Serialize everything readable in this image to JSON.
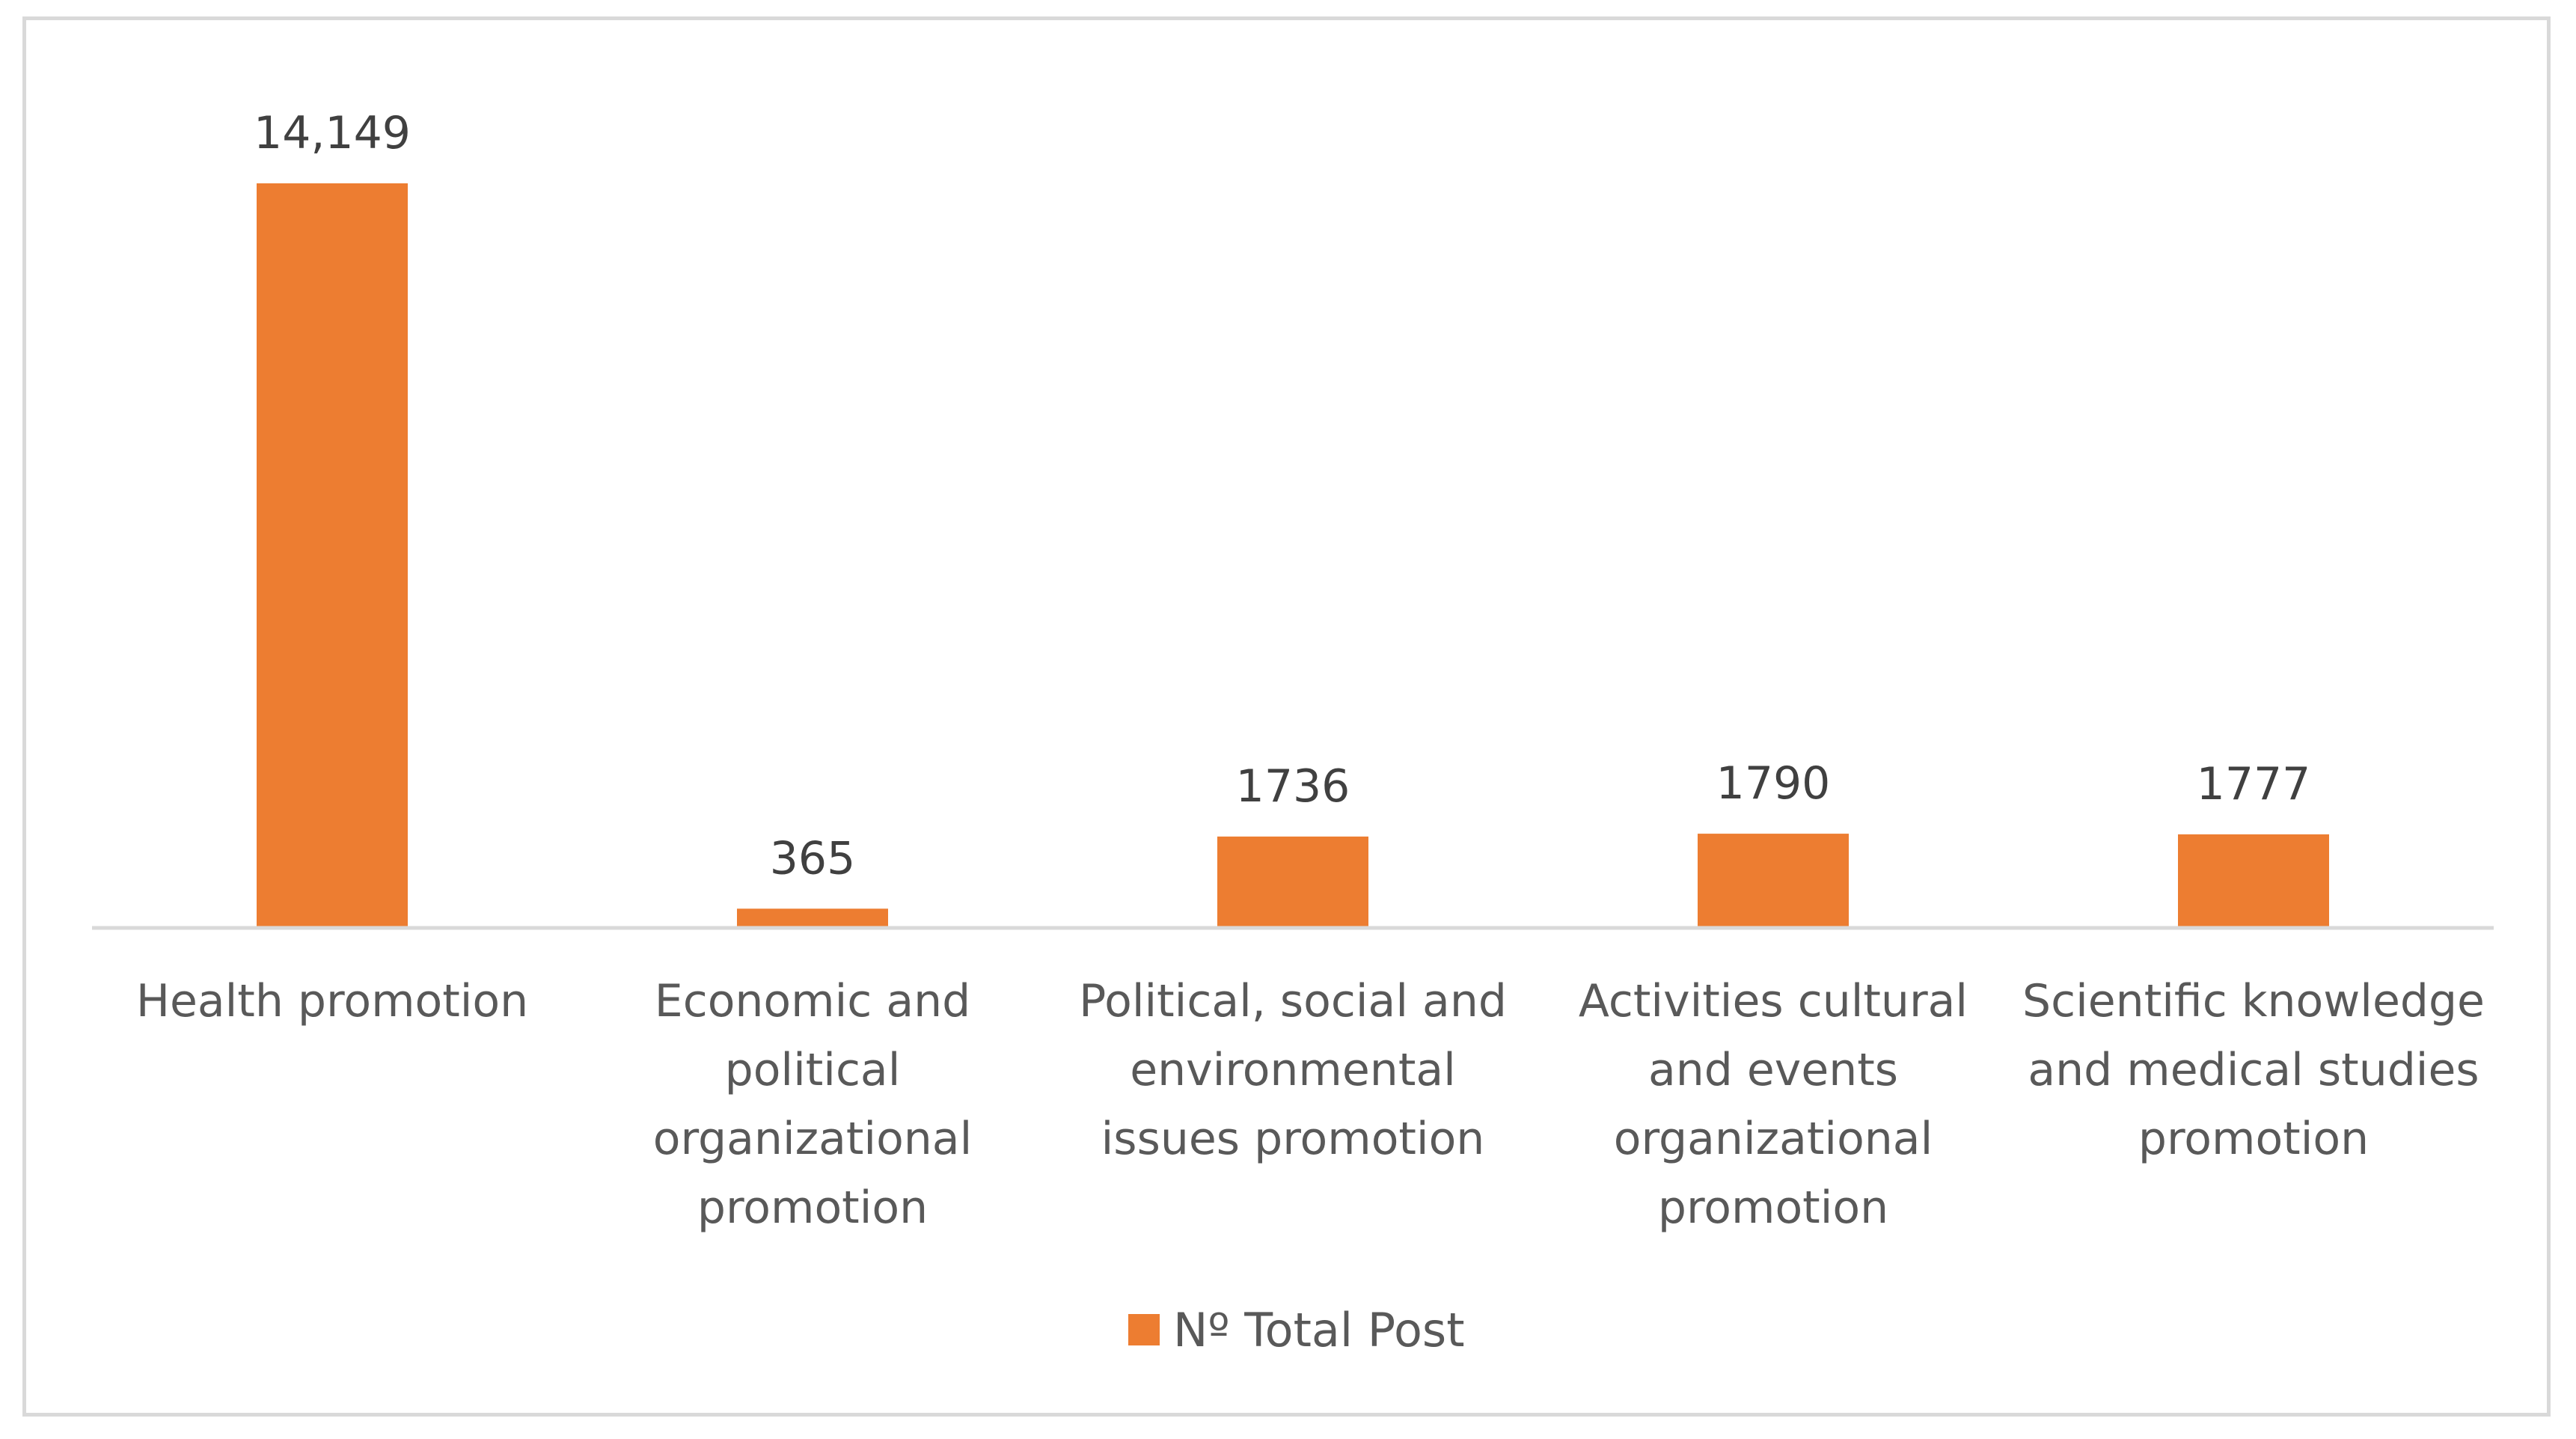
{
  "chart_data": {
    "type": "bar",
    "categories": [
      "Health promotion",
      "Economic and political organizational promotion",
      "Political, social and environmental issues promotion",
      "Activities cultural and events organizational promotion",
      "Scientific knowledge and medical studies promotion"
    ],
    "category_lines": [
      [
        "Health promotion"
      ],
      [
        "Economic and",
        "political",
        "organizational",
        "promotion"
      ],
      [
        "Political, social and",
        "environmental",
        "issues promotion"
      ],
      [
        "Activities cultural",
        "and events",
        "organizational",
        "promotion"
      ],
      [
        "Scientific knowledge",
        "and medical studies",
        "promotion"
      ]
    ],
    "series": [
      {
        "name": "Nº Total Post",
        "values": [
          14149,
          365,
          1736,
          1790,
          1777
        ],
        "data_labels": [
          "14,149",
          "365",
          "1736",
          "1790",
          "1777"
        ],
        "color": "#ED7D31"
      }
    ],
    "title": "",
    "xlabel": "",
    "ylabel": "",
    "ylim": [
      0,
      14149
    ],
    "grid": false,
    "legend": "bottom",
    "axis_line_color": "#d9d9d9"
  }
}
